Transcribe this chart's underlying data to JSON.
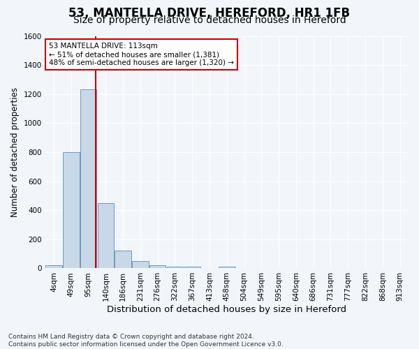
{
  "title_line1": "53, MANTELLA DRIVE, HEREFORD, HR1 1FB",
  "title_line2": "Size of property relative to detached houses in Hereford",
  "xlabel": "Distribution of detached houses by size in Hereford",
  "ylabel": "Number of detached properties",
  "footnote_line1": "Contains HM Land Registry data © Crown copyright and database right 2024.",
  "footnote_line2": "Contains public sector information licensed under the Open Government Licence v3.0.",
  "bin_labels": [
    "4sqm",
    "49sqm",
    "95sqm",
    "140sqm",
    "186sqm",
    "231sqm",
    "276sqm",
    "322sqm",
    "367sqm",
    "413sqm",
    "458sqm",
    "504sqm",
    "549sqm",
    "595sqm",
    "640sqm",
    "686sqm",
    "731sqm",
    "777sqm",
    "822sqm",
    "868sqm",
    "913sqm"
  ],
  "bar_heights": [
    20,
    800,
    1230,
    450,
    120,
    50,
    20,
    10,
    10,
    0,
    10,
    0,
    0,
    0,
    0,
    0,
    0,
    0,
    0,
    0,
    0
  ],
  "bar_color": "#c8d8e8",
  "bar_edge_color": "#5b8db8",
  "property_line_x": 2.4,
  "property_line_color": "#cc0000",
  "annotation_line1": "53 MANTELLA DRIVE: 113sqm",
  "annotation_line2": "← 51% of detached houses are smaller (1,381)",
  "annotation_line3": "48% of semi-detached houses are larger (1,320) →",
  "annotation_box_color": "#ffffff",
  "annotation_box_edge_color": "#cc0000",
  "ylim": [
    0,
    1600
  ],
  "yticks": [
    0,
    200,
    400,
    600,
    800,
    1000,
    1200,
    1400,
    1600
  ],
  "background_color": "#f2f6fa",
  "plot_bg_color": "#f2f6fa",
  "grid_color": "#ffffff",
  "title1_fontsize": 12,
  "title2_fontsize": 10,
  "xlabel_fontsize": 9.5,
  "ylabel_fontsize": 8.5,
  "tick_fontsize": 7.5,
  "annotation_fontsize": 7.5,
  "footnote_fontsize": 6.5
}
